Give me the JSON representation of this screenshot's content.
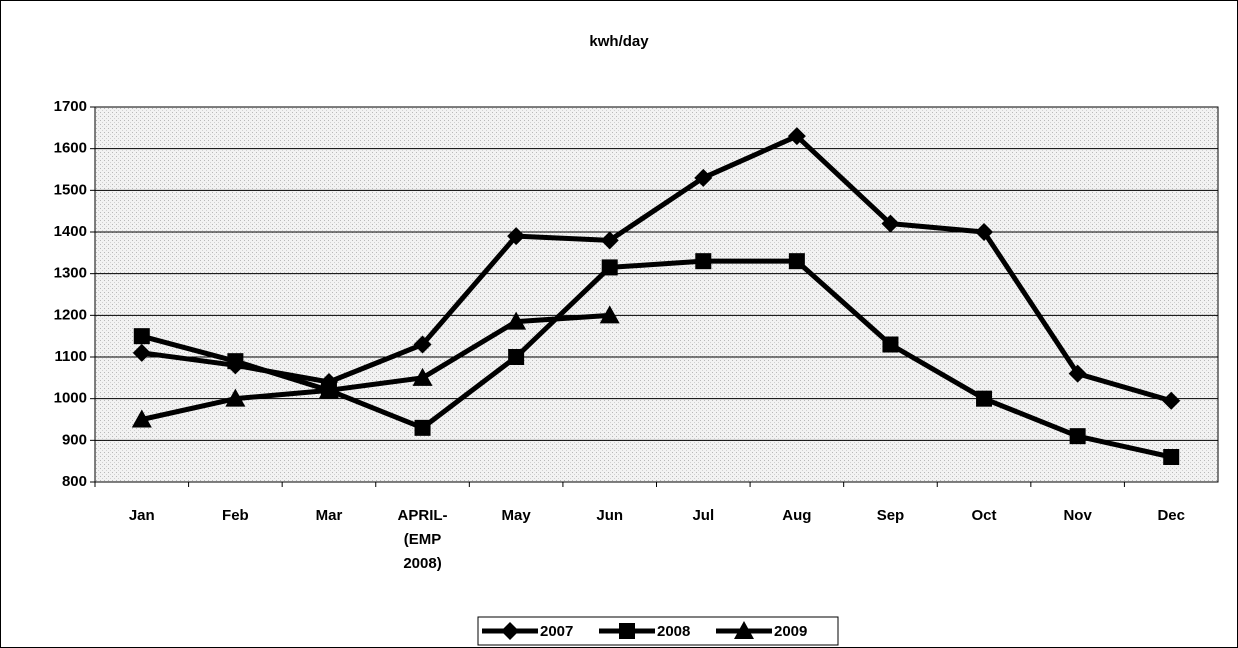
{
  "chart_data": {
    "type": "line",
    "title": "kwh/day",
    "categories": [
      "Jan",
      "Feb",
      "Mar",
      "APRIL- (EMP 2008)",
      "May",
      "Jun",
      "Jul",
      "Aug",
      "Sep",
      "Oct",
      "Nov",
      "Dec"
    ],
    "series": [
      {
        "name": "2007",
        "color": "#000000",
        "marker": "diamond",
        "values": [
          1110,
          1080,
          1040,
          1130,
          1390,
          1380,
          1530,
          1630,
          1420,
          1400,
          1060,
          995
        ]
      },
      {
        "name": "2008",
        "color": "#000000",
        "marker": "square",
        "values": [
          1150,
          1090,
          1020,
          930,
          1100,
          1315,
          1330,
          1330,
          1130,
          1000,
          910,
          860
        ]
      },
      {
        "name": "2009",
        "color": "#000000",
        "marker": "triangle",
        "values": [
          950,
          1000,
          1020,
          1050,
          1185,
          1200,
          null,
          null,
          null,
          null,
          null,
          null
        ]
      }
    ],
    "ylim": [
      800,
      1700
    ],
    "yticks": [
      800,
      900,
      1000,
      1100,
      1200,
      1300,
      1400,
      1500,
      1600,
      1700
    ],
    "grid": true,
    "legend": "bottom"
  }
}
